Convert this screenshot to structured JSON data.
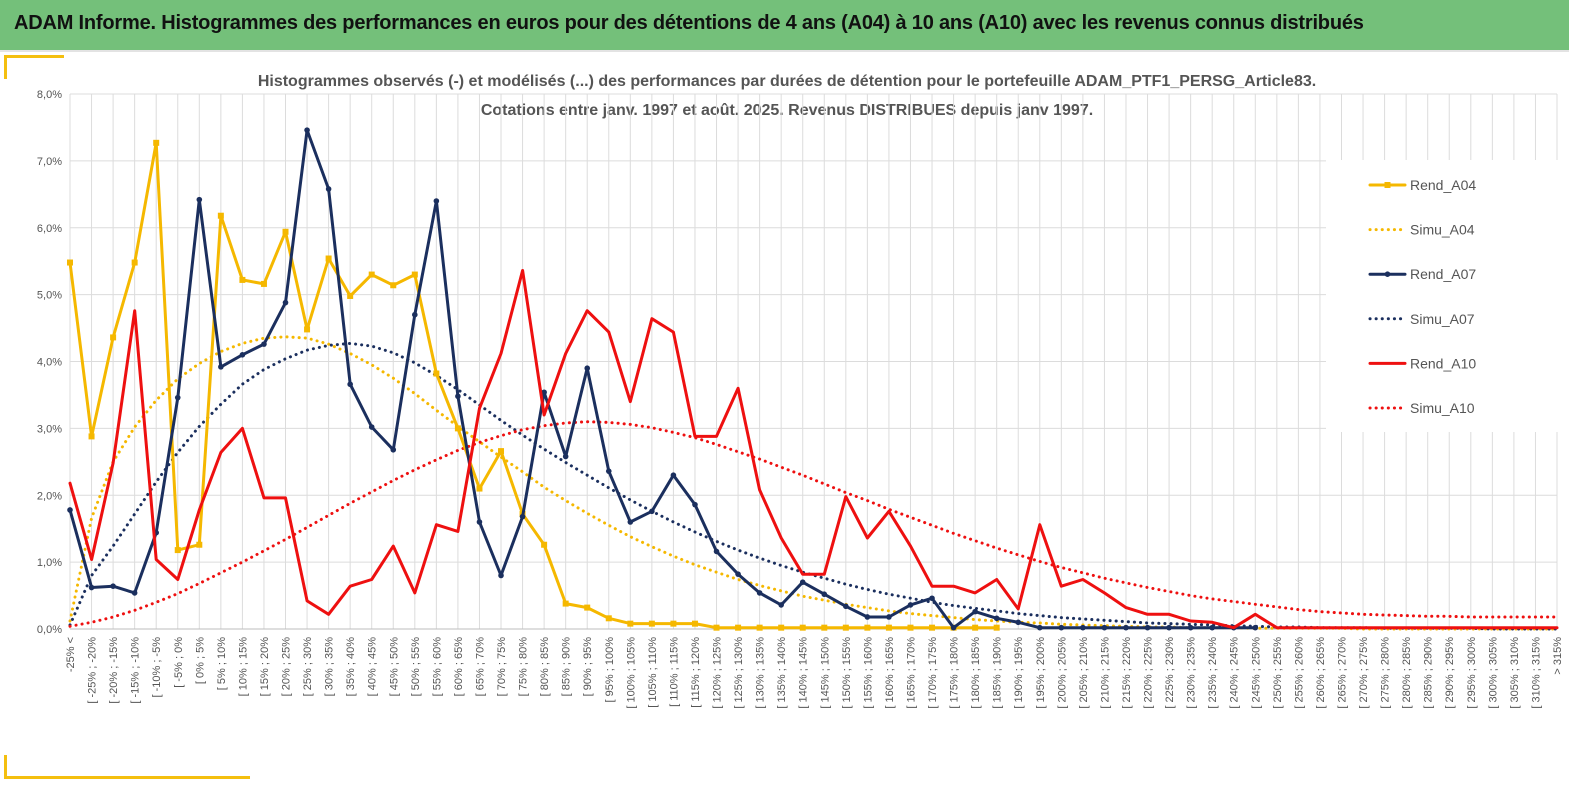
{
  "banner": {
    "title": "ADAM Informe. Histogrammes des performances en euros pour des détentions de 4 ans (A04) à 10 ans (A10) avec les revenus connus distribués"
  },
  "colors": {
    "banner_bg": "#74c07a",
    "accent_yellow": "#f4bf0f",
    "A04": "#f5b800",
    "A07": "#1b2f5e",
    "A10": "#ee1010"
  },
  "chart_data": {
    "type": "line",
    "title_lines": [
      "Histogrammes observés (-) et modélisés (...) des performances par durées de détention pour le portefeuille ADAM_PTF1_PERSG_Article83.",
      "Cotations entre janv. 1997 et août. 2025. Revenus DISTRIBUES depuis janv 1997."
    ],
    "y_ticks": [
      "0,0%",
      "1,0%",
      "2,0%",
      "3,0%",
      "4,0%",
      "5,0%",
      "6,0%",
      "7,0%",
      "8,0%"
    ],
    "ylim": [
      0,
      8
    ],
    "grid": true,
    "legend_position": "right",
    "categories": [
      "-25% <",
      "[ -25% ; -20%",
      "[ -20% ; -15%",
      "[ -15% ; -10%",
      "[ -10% ; -5%",
      "[ -5% ; 0%",
      "[ 0% ; 5%",
      "[ 5% ; 10%",
      "[ 10% ; 15%",
      "[ 15% ; 20%",
      "[ 20% ; 25%",
      "[ 25% ; 30%",
      "[ 30% ; 35%",
      "[ 35% ; 40%",
      "[ 40% ; 45%",
      "[ 45% ; 50%",
      "[ 50% ; 55%",
      "[ 55% ; 60%",
      "[ 60% ; 65%",
      "[ 65% ; 70%",
      "[ 70% ; 75%",
      "[ 75% ; 80%",
      "[ 80% ; 85%",
      "[ 85% ; 90%",
      "[ 90% ; 95%",
      "[ 95% ; 100%",
      "[ 100% ; 105%",
      "[ 105% ; 110%",
      "[ 110% ; 115%",
      "[ 115% ; 120%",
      "[ 120% ; 125%",
      "[ 125% ; 130%",
      "[ 130% ; 135%",
      "[ 135% ; 140%",
      "[ 140% ; 145%",
      "[ 145% ; 150%",
      "[ 150% ; 155%",
      "[ 155% ; 160%",
      "[ 160% ; 165%",
      "[ 165% ; 170%",
      "[ 170% ; 175%",
      "[ 175% ; 180%",
      "[ 180% ; 185%",
      "[ 185% ; 190%",
      "[ 190% ; 195%",
      "[ 195% ; 200%",
      "[ 200% ; 205%",
      "[ 205% ; 210%",
      "[ 210% ; 215%",
      "[ 215% ; 220%",
      "[ 220% ; 225%",
      "[ 225% ; 230%",
      "[ 230% ; 235%",
      "[ 235% ; 240%",
      "[ 240% ; 245%",
      "[ 245% ; 250%",
      "[ 250% ; 255%",
      "[ 255% ; 260%",
      "[ 260% ; 265%",
      "[ 265% ; 270%",
      "[ 270% ; 275%",
      "[ 275% ; 280%",
      "[ 280% ; 285%",
      "[ 285% ; 290%",
      "[ 290% ; 295%",
      "[ 295% ; 300%",
      "[ 300% ; 305%",
      "[ 305% ; 310%",
      "[ 310% ; 315%",
      "> 315%"
    ],
    "series": [
      {
        "name": "Rend_A04",
        "style": "solid",
        "marker": "square",
        "color": "#f5b800",
        "values": [
          5.48,
          2.88,
          4.36,
          5.48,
          7.27,
          1.18,
          1.26,
          6.18,
          5.22,
          5.16,
          5.94,
          4.48,
          5.54,
          4.98,
          5.3,
          5.14,
          5.3,
          3.82,
          3.0,
          2.1,
          2.66,
          1.72,
          1.26,
          0.38,
          0.32,
          0.16,
          0.08,
          0.08,
          0.08,
          0.08,
          0.02,
          0.02,
          0.02,
          0.02,
          0.02,
          0.02,
          0.02,
          0.02,
          0.02,
          0.02,
          0.02,
          0.02,
          0.02,
          0.02,
          null,
          null,
          null,
          null,
          null,
          null,
          null,
          null,
          null,
          null,
          null,
          null,
          null,
          null,
          null,
          null,
          null,
          null,
          null,
          null,
          null,
          null,
          null,
          null,
          null,
          null
        ]
      },
      {
        "name": "Simu_A04",
        "style": "dotted",
        "color": "#f5b800",
        "values": [
          0.12,
          1.66,
          2.5,
          3.02,
          3.42,
          3.74,
          3.97,
          4.15,
          4.27,
          4.35,
          4.37,
          4.35,
          4.26,
          4.12,
          3.95,
          3.75,
          3.52,
          3.27,
          3.03,
          2.8,
          2.57,
          2.35,
          2.12,
          1.92,
          1.73,
          1.55,
          1.38,
          1.23,
          1.09,
          0.96,
          0.85,
          0.74,
          0.65,
          0.57,
          0.49,
          0.43,
          0.37,
          0.32,
          0.27,
          0.23,
          0.2,
          0.17,
          0.14,
          0.12,
          0.1,
          0.09,
          0.07,
          0.06,
          0.05,
          0.04,
          0.03,
          0.03,
          0.02,
          0.02,
          0.02,
          0.01,
          0.01,
          0.01,
          0.01,
          0.01,
          0.0,
          0.0,
          0.0,
          0.0,
          0.0,
          0.0,
          0.0,
          0.0,
          0.0,
          0.0
        ]
      },
      {
        "name": "Rend_A07",
        "style": "solid",
        "marker": "circle",
        "color": "#1b2f5e",
        "values": [
          1.78,
          0.62,
          0.64,
          0.54,
          1.44,
          3.46,
          6.42,
          3.92,
          4.1,
          4.26,
          4.88,
          7.46,
          6.58,
          3.66,
          3.02,
          2.68,
          4.7,
          6.4,
          3.48,
          1.6,
          0.8,
          1.68,
          3.54,
          2.58,
          3.9,
          2.36,
          1.6,
          1.76,
          2.3,
          1.86,
          1.16,
          0.82,
          0.54,
          0.36,
          0.7,
          0.52,
          0.34,
          0.18,
          0.18,
          0.36,
          0.46,
          0.02,
          0.26,
          0.16,
          0.1,
          0.02,
          0.02,
          0.02,
          0.02,
          0.02,
          0.02,
          0.02,
          0.02,
          0.02,
          0.02,
          0.02,
          null,
          null,
          null,
          null,
          null,
          null,
          null,
          null,
          null,
          null,
          null,
          null,
          null,
          null
        ]
      },
      {
        "name": "Simu_A07",
        "style": "dotted",
        "color": "#1b2f5e",
        "values": [
          0.06,
          0.8,
          1.24,
          1.72,
          2.2,
          2.64,
          3.03,
          3.36,
          3.66,
          3.88,
          4.04,
          4.17,
          4.24,
          4.27,
          4.23,
          4.13,
          3.98,
          3.79,
          3.58,
          3.35,
          3.12,
          2.9,
          2.69,
          2.49,
          2.3,
          2.11,
          1.93,
          1.76,
          1.6,
          1.45,
          1.31,
          1.18,
          1.06,
          0.95,
          0.85,
          0.76,
          0.67,
          0.59,
          0.52,
          0.46,
          0.4,
          0.35,
          0.31,
          0.27,
          0.23,
          0.2,
          0.17,
          0.15,
          0.13,
          0.11,
          0.09,
          0.08,
          0.07,
          0.06,
          0.05,
          0.04,
          0.03,
          0.03,
          0.02,
          0.02,
          0.02,
          0.01,
          0.01,
          0.01,
          0.01,
          0.01,
          0.0,
          0.0,
          0.0,
          0.0
        ]
      },
      {
        "name": "Rend_A10",
        "style": "solid",
        "marker": "none",
        "color": "#ee1010",
        "values": [
          2.18,
          1.04,
          2.48,
          4.76,
          1.04,
          0.74,
          1.78,
          2.64,
          3.0,
          1.96,
          1.96,
          0.42,
          0.22,
          0.64,
          0.74,
          1.24,
          0.54,
          1.56,
          1.46,
          3.3,
          4.12,
          5.36,
          3.2,
          4.12,
          4.76,
          4.44,
          3.4,
          4.64,
          4.44,
          2.88,
          2.88,
          3.6,
          2.08,
          1.36,
          0.82,
          0.82,
          1.98,
          1.36,
          1.76,
          1.24,
          0.64,
          0.64,
          0.54,
          0.74,
          0.3,
          1.56,
          0.64,
          0.74,
          0.54,
          0.32,
          0.22,
          0.22,
          0.12,
          0.1,
          0.02,
          0.22,
          0.02,
          0.02,
          0.02,
          0.02,
          0.02,
          0.02,
          0.02,
          0.02,
          0.02,
          0.02,
          0.02,
          0.02,
          0.02,
          0.02
        ]
      },
      {
        "name": "Simu_A10",
        "style": "dotted",
        "color": "#ee1010",
        "values": [
          0.04,
          0.1,
          0.18,
          0.28,
          0.4,
          0.53,
          0.68,
          0.84,
          1.0,
          1.17,
          1.34,
          1.52,
          1.7,
          1.88,
          2.05,
          2.22,
          2.38,
          2.53,
          2.67,
          2.79,
          2.89,
          2.98,
          3.04,
          3.08,
          3.1,
          3.09,
          3.06,
          3.01,
          2.94,
          2.86,
          2.76,
          2.65,
          2.54,
          2.42,
          2.3,
          2.17,
          2.04,
          1.92,
          1.79,
          1.67,
          1.55,
          1.43,
          1.32,
          1.21,
          1.11,
          1.01,
          0.92,
          0.84,
          0.76,
          0.69,
          0.62,
          0.56,
          0.5,
          0.45,
          0.41,
          0.37,
          0.33,
          0.29,
          0.26,
          0.24,
          0.22,
          0.21,
          0.2,
          0.19,
          0.19,
          0.18,
          0.18,
          0.18,
          0.18,
          0.18
        ]
      }
    ]
  }
}
